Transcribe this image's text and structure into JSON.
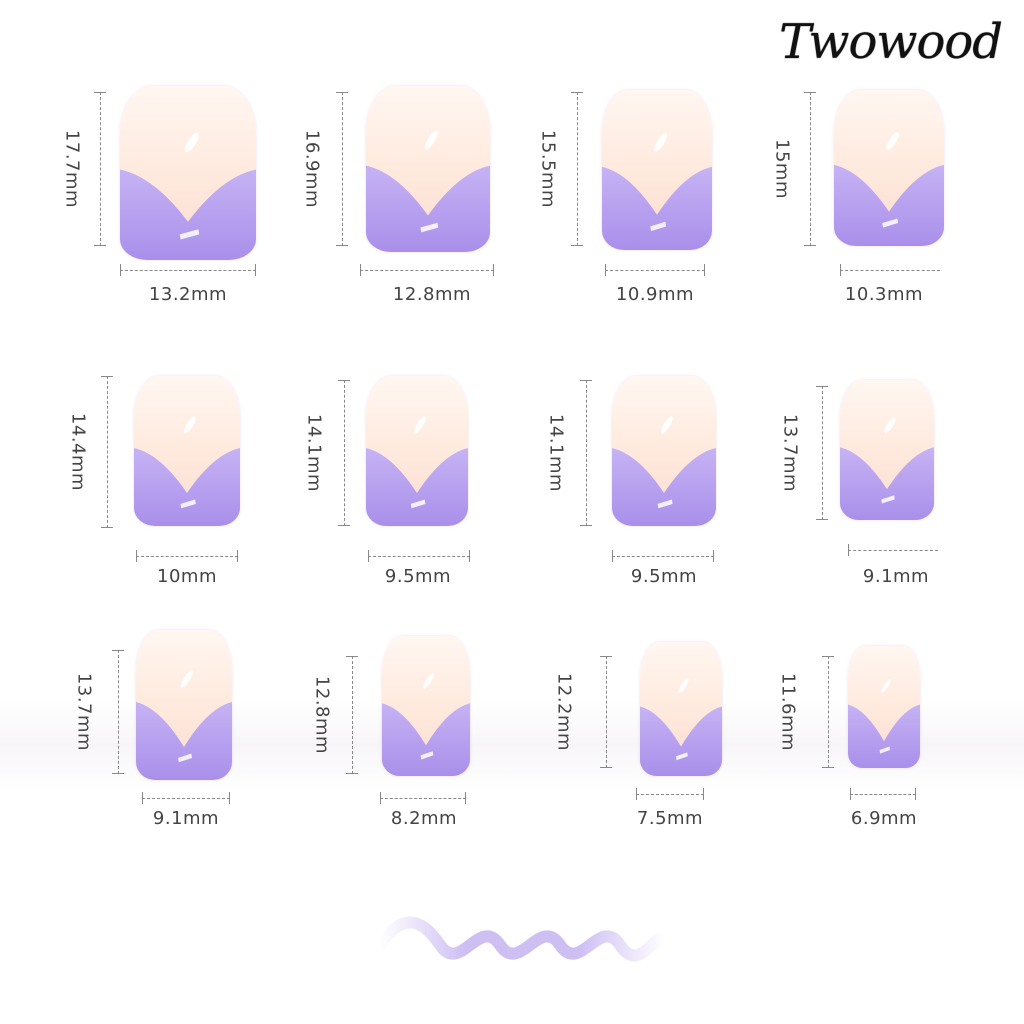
{
  "brand": {
    "logo_text": "Twowood"
  },
  "colors": {
    "nail_base": "#ffe8dc",
    "tip_lilac": "#b8a2ee",
    "dimension_line": "#888888",
    "wave": "#c8b8f2"
  },
  "nails": [
    {
      "length": "17.7mm",
      "width": "13.2mm"
    },
    {
      "length": "16.9mm",
      "width": "12.8mm"
    },
    {
      "length": "15.5mm",
      "width": "10.9mm"
    },
    {
      "length": "15mm",
      "width": "10.3mm"
    },
    {
      "length": "14.4mm",
      "width": "10mm"
    },
    {
      "length": "14.1mm",
      "width": "9.5mm"
    },
    {
      "length": "14.1mm",
      "width": "9.5mm"
    },
    {
      "length": "13.7mm",
      "width": "9.1mm"
    },
    {
      "length": "13.7mm",
      "width": "9.1mm"
    },
    {
      "length": "12.8mm",
      "width": "8.2mm"
    },
    {
      "length": "12.2mm",
      "width": "7.5mm"
    },
    {
      "length": "11.6mm",
      "width": "6.9mm"
    }
  ]
}
